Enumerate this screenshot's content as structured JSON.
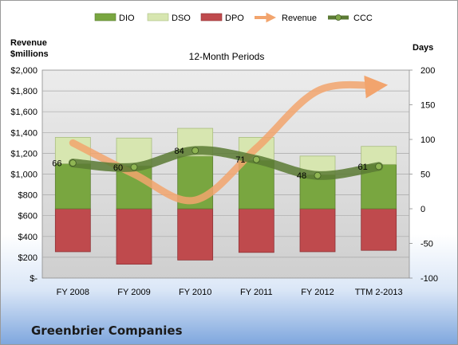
{
  "company": "Greenbrier Companies",
  "colors": {
    "dio": "#79a640",
    "dso": "#d7e6b0",
    "dpo": "#bf4a4d",
    "revenue": "#f2a46d",
    "ccc": "#5b7a34",
    "plot_bg": "#dcdcdc"
  },
  "chart_data": {
    "type": "bar",
    "title": "12-Month Periods",
    "y_left_label": [
      "Revenue",
      "$millions"
    ],
    "y_right_label": "Days",
    "y_left_ticks": [
      "$2,000",
      "$1,800",
      "$1,600",
      "$1,400",
      "$1,200",
      "$1,000",
      "$800",
      "$600",
      "$400",
      "$200",
      "$-"
    ],
    "y_right_ticks": [
      "200",
      "150",
      "100",
      "50",
      "0",
      "-50",
      "-100"
    ],
    "ylim_left": [
      0,
      2000
    ],
    "ylim_right": [
      -100,
      200
    ],
    "grid": true,
    "legend_position": "top",
    "categories": [
      "FY 2008",
      "FY 2009",
      "FY 2010",
      "FY 2011",
      "FY 2012",
      "TTM 2-2013"
    ],
    "legend": [
      "DIO",
      "DSO",
      "DPO",
      "Revenue",
      "CCC"
    ],
    "series": [
      {
        "name": "DIO",
        "axis": "days",
        "values": [
          65,
          62,
          76,
          70,
          49,
          64
        ]
      },
      {
        "name": "DSO",
        "axis": "days",
        "values": [
          38,
          40,
          40,
          33,
          27,
          26
        ]
      },
      {
        "name": "DPO",
        "axis": "days",
        "values": [
          -62,
          -80,
          -74,
          -63,
          -62,
          -60
        ]
      },
      {
        "name": "Revenue",
        "axis": "revenue",
        "values": [
          1300,
          1000,
          750,
          1250,
          1800,
          1850
        ]
      },
      {
        "name": "CCC",
        "axis": "days",
        "values": [
          66,
          60,
          84,
          71,
          48,
          61
        ]
      }
    ],
    "ccc_labels": [
      "66",
      "60",
      "84",
      "71",
      "48",
      "61"
    ]
  }
}
